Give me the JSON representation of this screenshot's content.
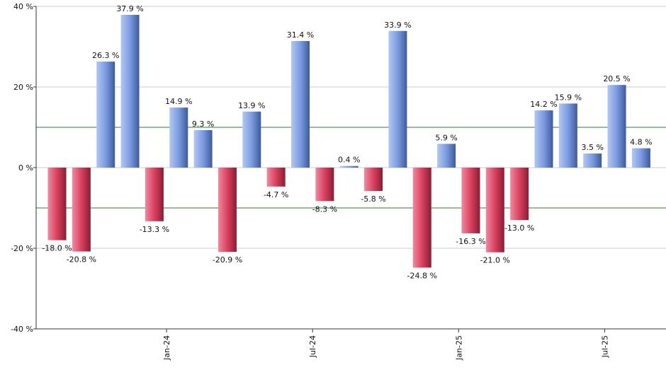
{
  "chart_data": {
    "type": "bar",
    "title": "",
    "xlabel": "",
    "ylabel": "",
    "ylim": [
      -40,
      40
    ],
    "yticks": [
      40,
      20,
      0,
      -20,
      -40
    ],
    "ytick_labels": [
      "40 %",
      "20 %",
      "0 %",
      "-20 %",
      "-40 %"
    ],
    "values": [
      -18.0,
      -20.8,
      26.3,
      37.9,
      -13.3,
      14.9,
      9.3,
      -20.9,
      13.9,
      -4.7,
      31.4,
      -8.3,
      0.4,
      -5.8,
      33.9,
      -24.8,
      5.9,
      -16.3,
      -21.0,
      -13.0,
      14.2,
      15.9,
      3.5,
      20.5,
      4.8
    ],
    "value_labels": [
      "-18.0 %",
      "-20.8 %",
      "26.3 %",
      "37.9 %",
      "-13.3 %",
      "14.9 %",
      "9.3 %",
      "-20.9 %",
      "13.9 %",
      "-4.7 %",
      "31.4 %",
      "-8.3 %",
      "0.4 %",
      "-5.8 %",
      "33.9 %",
      "-24.8 %",
      "5.9 %",
      "-16.3 %",
      "-21.0 %",
      "-13.0 %",
      "14.2 %",
      "15.9 %",
      "3.5 %",
      "20.5 %",
      "4.8 %"
    ],
    "x_tick_labels": [
      {
        "label": "Jan-24",
        "bar_index": 4.5
      },
      {
        "label": "Jul-24",
        "bar_index": 10.5
      },
      {
        "label": "Jan-25",
        "bar_index": 16.5
      },
      {
        "label": "Jul-25",
        "bar_index": 22.5
      }
    ],
    "reference_lines": [
      10,
      -10
    ],
    "grid": true,
    "legend": "none",
    "colors": {
      "positive": "#7b9be0",
      "negative": "#d9405e",
      "reference_line": "#2e7d32",
      "grid": "#cccccc"
    }
  }
}
